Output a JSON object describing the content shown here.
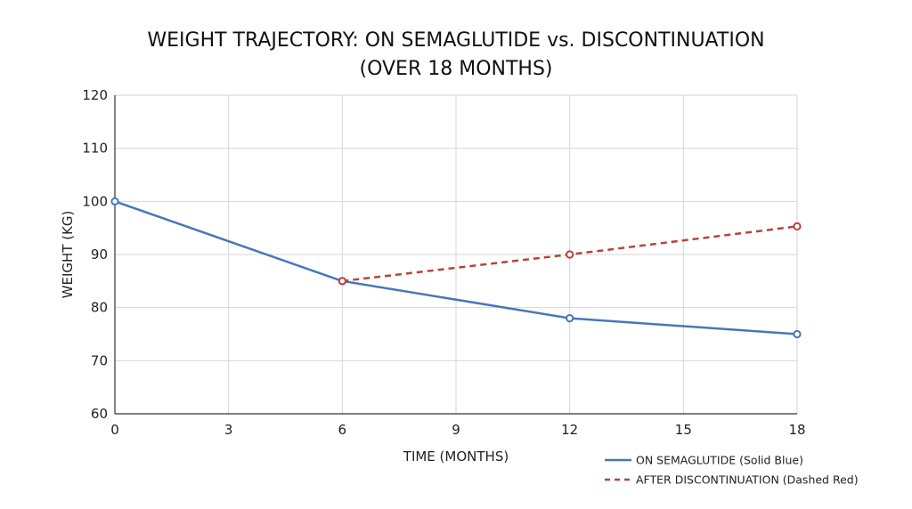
{
  "chart_data": {
    "type": "line",
    "title": [
      "WEIGHT TRAJECTORY: ON SEMAGLUTIDE vs. DISCONTINUATION",
      "(OVER 18 MONTHS)"
    ],
    "xlabel": "TIME (MONTHS)",
    "ylabel": "WEIGHT (KG)",
    "xlim": [
      0,
      18
    ],
    "ylim": [
      60,
      120
    ],
    "xticks": [
      0,
      3,
      6,
      9,
      12,
      15,
      18
    ],
    "yticks": [
      60,
      70,
      80,
      90,
      100,
      110,
      120
    ],
    "grid": true,
    "legend_position": "bottom-right",
    "series": [
      {
        "name": "ON SEMAGLUTIDE (Solid Blue)",
        "color": "#4a76b8",
        "style": "solid",
        "x": [
          0,
          6,
          12,
          18
        ],
        "y": [
          100,
          85,
          78,
          75
        ]
      },
      {
        "name": "AFTER DISCONTINUATION (Dashed Red)",
        "color": "#b5453a",
        "style": "dashed",
        "x": [
          6,
          12,
          18
        ],
        "y": [
          85,
          90,
          95.3
        ]
      }
    ]
  }
}
